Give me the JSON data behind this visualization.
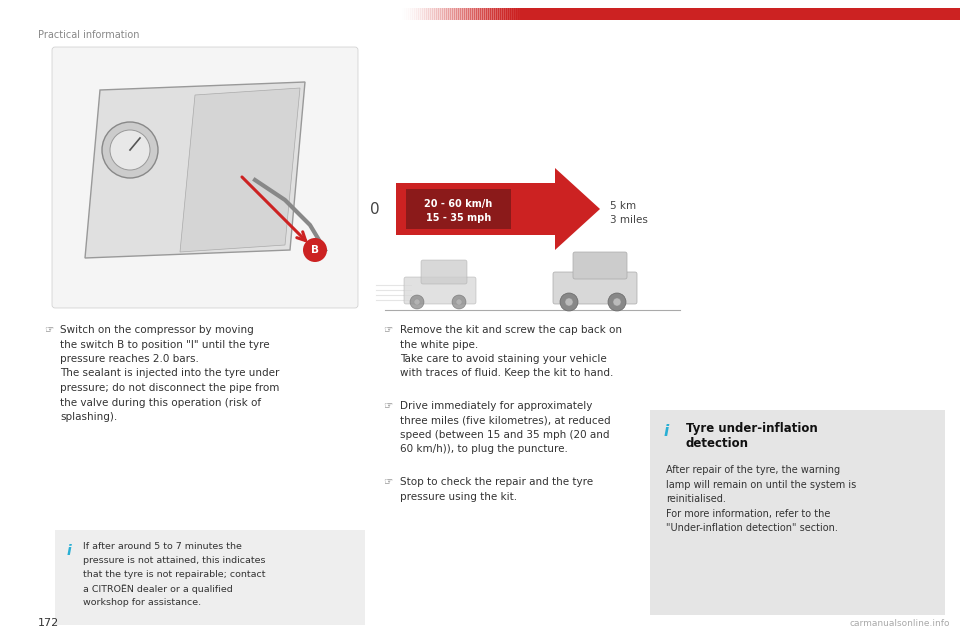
{
  "page_bg": "#ffffff",
  "header_text": "Practical information",
  "header_color": "#888888",
  "header_fontsize": 7,
  "page_num": "172",
  "page_num_color": "#333333",
  "top_bar_color": "#cc2222",
  "divider_color": "#dddddd",
  "bullet_char": "☞",
  "bullet_color": "#666666",
  "text_color": "#333333",
  "text_fontsize": 7.5,
  "info_bg1": "#eeeeee",
  "info_bg2": "#e5e5e5",
  "info_color": "#29afd4",
  "arrow_red": "#cc2222",
  "speed_dark_red": "#8b1a1a",
  "watermark_text": "carmanualsonline.info",
  "watermark_color": "#aaaaaa",
  "left_bullet1": [
    "Switch on the compressor by moving",
    "the switch B to position \"I\" until the tyre",
    "pressure reaches 2.0 bars.",
    "The sealant is injected into the tyre under",
    "pressure; do not disconnect the pipe from",
    "the valve during this operation (risk of",
    "splashing)."
  ],
  "infobox1_lines": [
    "If after around 5 to 7 minutes the",
    "pressure is not attained, this indicates",
    "that the tyre is not repairable; contact",
    "a CITROËN dealer or a qualified",
    "workshop for assistance."
  ],
  "right_bullet1": [
    "Remove the kit and screw the cap back on",
    "the white pipe.",
    "Take care to avoid staining your vehicle",
    "with traces of fluid. Keep the kit to hand."
  ],
  "right_bullet2": [
    "Drive immediately for approximately",
    "three miles (five kilometres), at reduced",
    "speed (between 15 and 35 mph (20 and",
    "60 km/h)), to plug the puncture."
  ],
  "right_bullet3": [
    "Stop to check the repair and the tyre",
    "pressure using the kit."
  ],
  "infobox2_title1": "Tyre under-inflation",
  "infobox2_title2": "detection",
  "infobox2_lines": [
    "After repair of the tyre, the warning",
    "lamp will remain on until the system is",
    "reinitialised.",
    "For more information, refer to the",
    "\"Under-inflation detection\" section."
  ],
  "speed_text1": "20 - 60 km/h",
  "speed_text2": "15 - 35 mph",
  "dist_text1": "5 km",
  "dist_text2": "3 miles"
}
